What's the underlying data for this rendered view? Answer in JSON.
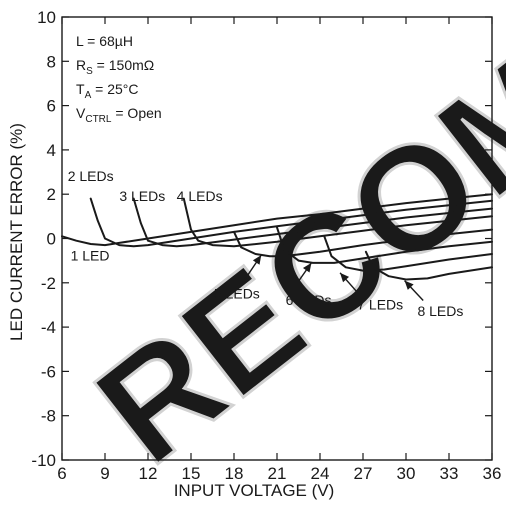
{
  "chart_data": {
    "type": "line",
    "title": "",
    "xlabel": "INPUT VOLTAGE (V)",
    "ylabel": "LED CURRENT ERROR (%)",
    "xlim": [
      6,
      36
    ],
    "ylim": [
      -10,
      10
    ],
    "x_ticks": [
      "6",
      "9",
      "12",
      "15",
      "18",
      "21",
      "24",
      "27",
      "30",
      "33",
      "36"
    ],
    "y_ticks": [
      "10",
      "8",
      "6",
      "4",
      "2",
      "0",
      "-2",
      "-4",
      "-6",
      "-8",
      "-10"
    ],
    "grid": false,
    "conditions": {
      "inductance": "L = 68µH",
      "rs_main": "R",
      "rs_sub": "S",
      "rs_value": " = 150mΩ",
      "ta_main": "T",
      "ta_sub": "A",
      "ta_value": " = 25°C",
      "vctrl_main": "V",
      "vctrl_sub": "CTRL",
      "vctrl_value": " = Open"
    },
    "series": [
      {
        "name": "1 LED",
        "x": [
          6,
          7,
          8,
          9,
          10,
          12,
          15,
          18,
          21,
          24,
          27,
          30,
          33,
          36
        ],
        "y": [
          0.1,
          -0.1,
          -0.25,
          -0.3,
          -0.2,
          0.0,
          0.3,
          0.6,
          0.9,
          1.1,
          1.35,
          1.6,
          1.8,
          2.0
        ]
      },
      {
        "name": "2 LEDs",
        "x": [
          8,
          8.5,
          9,
          10,
          11,
          12,
          15,
          18,
          21,
          24,
          27,
          30,
          33,
          36
        ],
        "y": [
          1.8,
          0.8,
          0.0,
          -0.3,
          -0.35,
          -0.3,
          0.0,
          0.3,
          0.55,
          0.8,
          1.05,
          1.3,
          1.5,
          1.7
        ]
      },
      {
        "name": "3 LEDs",
        "x": [
          11,
          11.5,
          12,
          13,
          14,
          15,
          18,
          21,
          24,
          27,
          30,
          33,
          36
        ],
        "y": [
          1.8,
          0.7,
          -0.1,
          -0.3,
          -0.35,
          -0.3,
          -0.05,
          0.2,
          0.45,
          0.7,
          0.95,
          1.15,
          1.35
        ]
      },
      {
        "name": "4 LEDs",
        "x": [
          14.5,
          15,
          15.5,
          16.5,
          18,
          21,
          24,
          27,
          30,
          33,
          36
        ],
        "y": [
          1.8,
          0.4,
          -0.1,
          -0.3,
          -0.35,
          -0.15,
          0.1,
          0.35,
          0.6,
          0.8,
          1.0
        ]
      },
      {
        "name": "5 LEDs",
        "x": [
          18,
          18.5,
          19.5,
          20.5,
          21.5,
          24,
          27,
          30,
          33,
          36
        ],
        "y": [
          0.3,
          -0.4,
          -0.7,
          -0.8,
          -0.8,
          -0.6,
          -0.3,
          -0.05,
          0.2,
          0.4
        ]
      },
      {
        "name": "6 LEDs",
        "x": [
          21,
          21.5,
          22.5,
          23.5,
          25,
          27,
          30,
          33,
          36
        ],
        "y": [
          0.5,
          -0.5,
          -1.0,
          -1.1,
          -1.1,
          -0.9,
          -0.6,
          -0.35,
          -0.15
        ]
      },
      {
        "name": "7 LEDs",
        "x": [
          24.3,
          24.8,
          25.8,
          27,
          28.5,
          30,
          33,
          36
        ],
        "y": [
          0.1,
          -0.8,
          -1.3,
          -1.45,
          -1.4,
          -1.25,
          -0.95,
          -0.7
        ]
      },
      {
        "name": "8 LEDs",
        "x": [
          27.2,
          27.7,
          28.8,
          30,
          31.5,
          33,
          36
        ],
        "y": [
          -0.6,
          -1.3,
          -1.7,
          -1.85,
          -1.8,
          -1.6,
          -1.3
        ]
      }
    ],
    "series_labels": [
      {
        "name": "1 LED",
        "text": "1 LED"
      },
      {
        "name": "2 LEDs",
        "text": "2 LEDs"
      },
      {
        "name": "3 LEDs",
        "text": "3 LEDs"
      },
      {
        "name": "4 LEDs",
        "text": "4 LEDs"
      },
      {
        "name": "5 LEDs",
        "text": "5 LEDs"
      },
      {
        "name": "6 LEDs",
        "text": "6 LEDs"
      },
      {
        "name": "7 LEDs",
        "text": "7 LEDs"
      },
      {
        "name": "8 LEDs",
        "text": "8 LEDs"
      }
    ],
    "watermark": "RECOMMENDED",
    "colors": {
      "line": "#1a1a1a",
      "watermark": "#d2d2d2"
    }
  }
}
